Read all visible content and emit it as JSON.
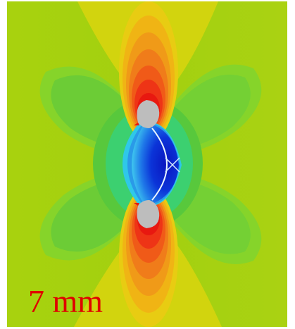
{
  "figure": {
    "scale_label": "7 mm",
    "colormap": [
      "#0018c8",
      "#1e6ee8",
      "#2fb4f0",
      "#2edc9c",
      "#3cc84c",
      "#78d23a",
      "#a6d20f",
      "#d2d212",
      "#f0c014",
      "#f09818",
      "#f06a1a",
      "#f03a16",
      "#e81810"
    ],
    "inclusion_color": "#bdbdbd",
    "scale_label_color": "#e00000"
  }
}
